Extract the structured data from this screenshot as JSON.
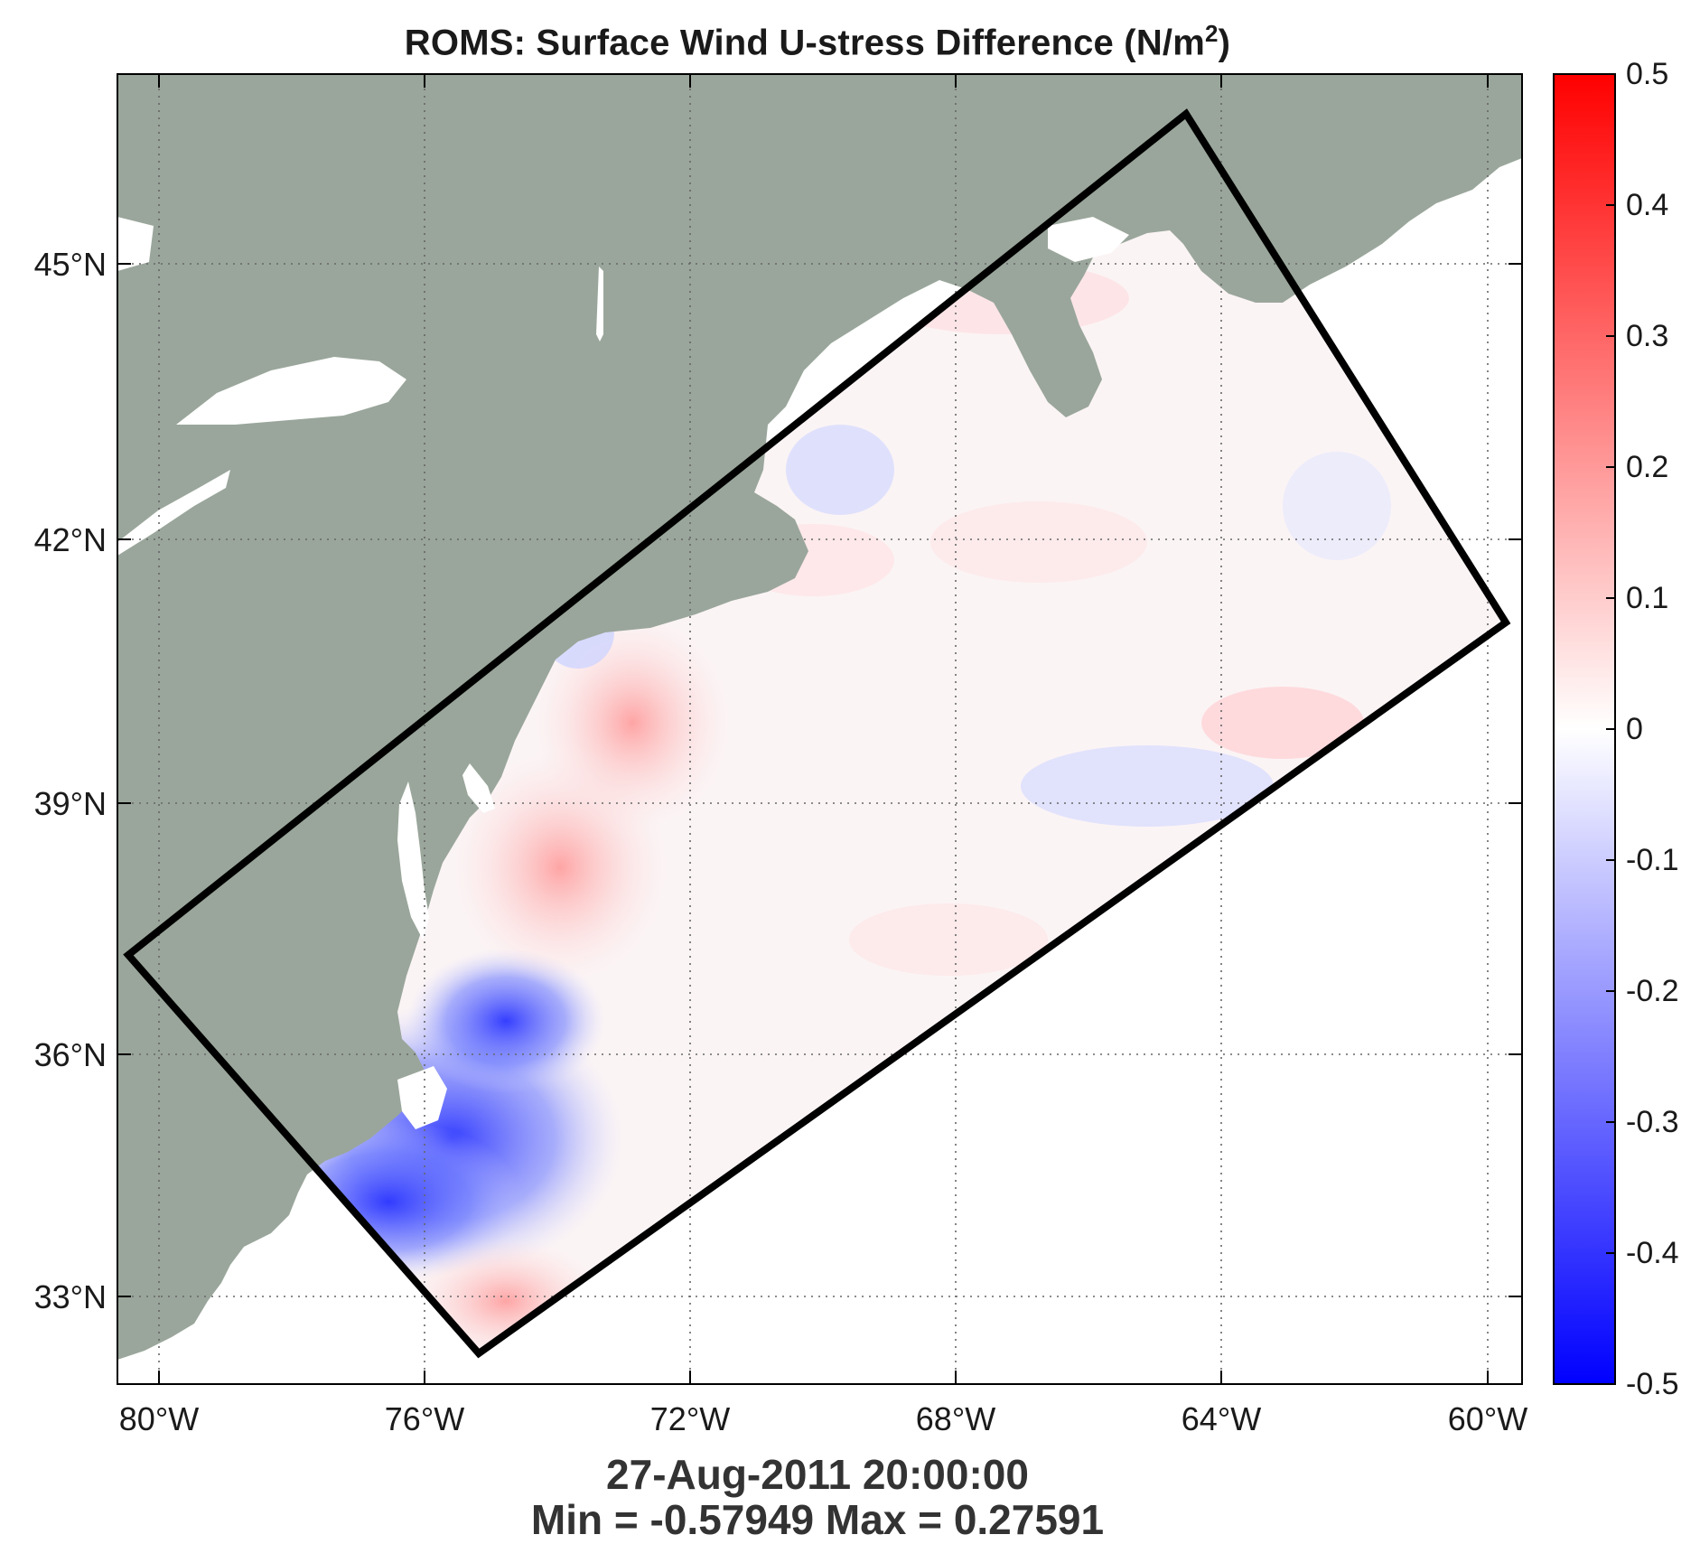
{
  "map": {
    "title_main": "ROMS: Surface Wind U-stress Difference (N/m",
    "title_sup": "2",
    "title_end": ")",
    "timestamp": "27-Aug-2011 20:00:00",
    "minmax": "Min = -0.57949  Max = 0.27591",
    "lat_labels": [
      "45°N",
      "42°N",
      "39°N",
      "36°N",
      "33°N"
    ],
    "lon_labels": [
      "80°W",
      "76°W",
      "72°W",
      "68°W",
      "64°W",
      "60°W"
    ],
    "land_color": "#9aa69b",
    "box_color": "#000000"
  },
  "colorbar": {
    "ticks": [
      "0.5",
      "0.4",
      "0.3",
      "0.2",
      "0.1",
      "0",
      "-0.1",
      "-0.2",
      "-0.3",
      "-0.4",
      "-0.5"
    ],
    "color_max": "#ff0000",
    "color_zero": "#ffffff",
    "color_min": "#0000ff"
  }
}
